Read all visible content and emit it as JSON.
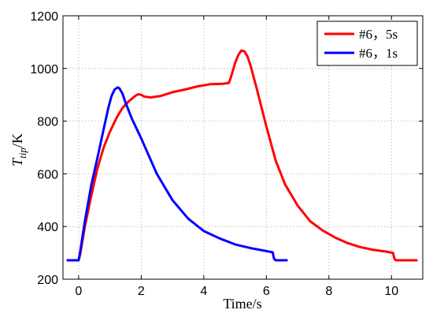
{
  "chart_data": {
    "type": "line",
    "title": "",
    "xlabel": "Time/s",
    "ylabel": {
      "base": "T",
      "sub": "tip",
      "unit": "/K"
    },
    "xlim": [
      -0.5,
      11
    ],
    "ylim": [
      200,
      1200
    ],
    "xticks": [
      0,
      2,
      4,
      6,
      8,
      10
    ],
    "yticks": [
      200,
      400,
      600,
      800,
      1000,
      1200
    ],
    "grid": true,
    "legend_position": "top-right",
    "series": [
      {
        "name": "#6，5s",
        "color": "#ff0000",
        "x": [
          -0.35,
          -0.05,
          0.0,
          0.05,
          0.2,
          0.4,
          0.6,
          0.8,
          1.0,
          1.2,
          1.4,
          1.6,
          1.8,
          1.9,
          2.0,
          2.1,
          2.3,
          2.6,
          3.0,
          3.4,
          3.8,
          4.2,
          4.6,
          4.8,
          4.85,
          4.9,
          5.0,
          5.1,
          5.2,
          5.3,
          5.4,
          5.5,
          5.7,
          6.0,
          6.3,
          6.6,
          7.0,
          7.4,
          7.8,
          8.2,
          8.6,
          9.0,
          9.4,
          9.8,
          10.05,
          10.1,
          10.15,
          10.8
        ],
        "y": [
          272,
          272,
          272,
          295,
          400,
          515,
          620,
          700,
          760,
          810,
          850,
          875,
          895,
          902,
          900,
          893,
          890,
          895,
          910,
          920,
          932,
          940,
          942,
          945,
          960,
          980,
          1020,
          1050,
          1068,
          1065,
          1045,
          1010,
          920,
          780,
          650,
          560,
          480,
          420,
          385,
          358,
          337,
          322,
          312,
          305,
          300,
          276,
          272,
          272
        ]
      },
      {
        "name": "#6，1s",
        "color": "#0000ff",
        "x": [
          -0.35,
          -0.05,
          0.0,
          0.05,
          0.2,
          0.4,
          0.6,
          0.8,
          0.95,
          1.05,
          1.15,
          1.25,
          1.3,
          1.4,
          1.5,
          1.7,
          2.0,
          2.5,
          3.0,
          3.5,
          4.0,
          4.5,
          5.0,
          5.5,
          6.0,
          6.2,
          6.25,
          6.3,
          6.65
        ],
        "y": [
          272,
          272,
          272,
          305,
          420,
          555,
          660,
          770,
          850,
          895,
          920,
          928,
          925,
          905,
          870,
          810,
          735,
          600,
          500,
          430,
          383,
          355,
          332,
          318,
          307,
          302,
          277,
          272,
          272
        ]
      }
    ]
  }
}
